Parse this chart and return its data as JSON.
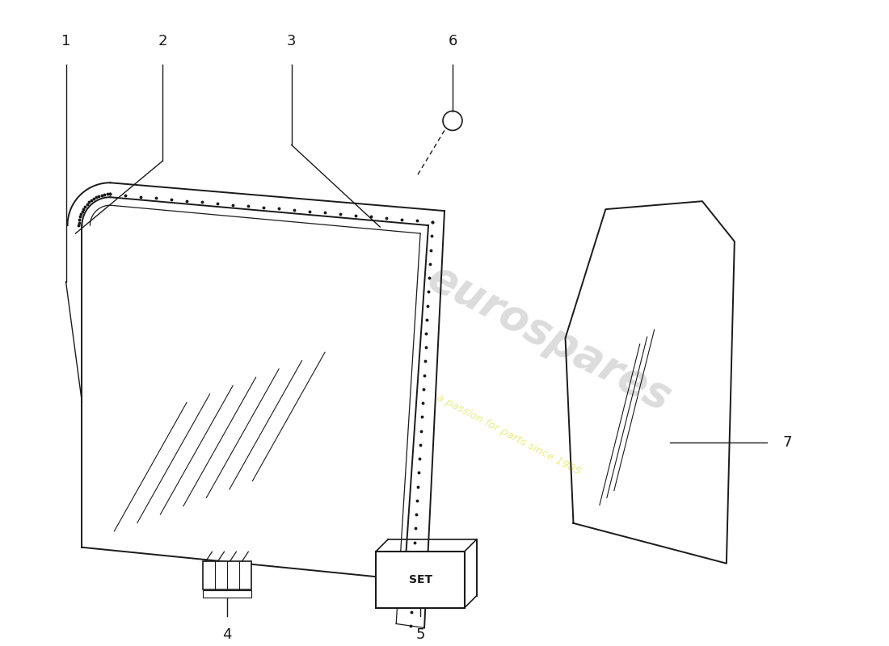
{
  "background_color": "#ffffff",
  "line_color": "#1a1a1a",
  "watermark_text": "eurospares",
  "watermark_subtext": "a passion for parts since 1985",
  "parts": [
    "1",
    "2",
    "3",
    "4",
    "5",
    "6",
    "7"
  ]
}
